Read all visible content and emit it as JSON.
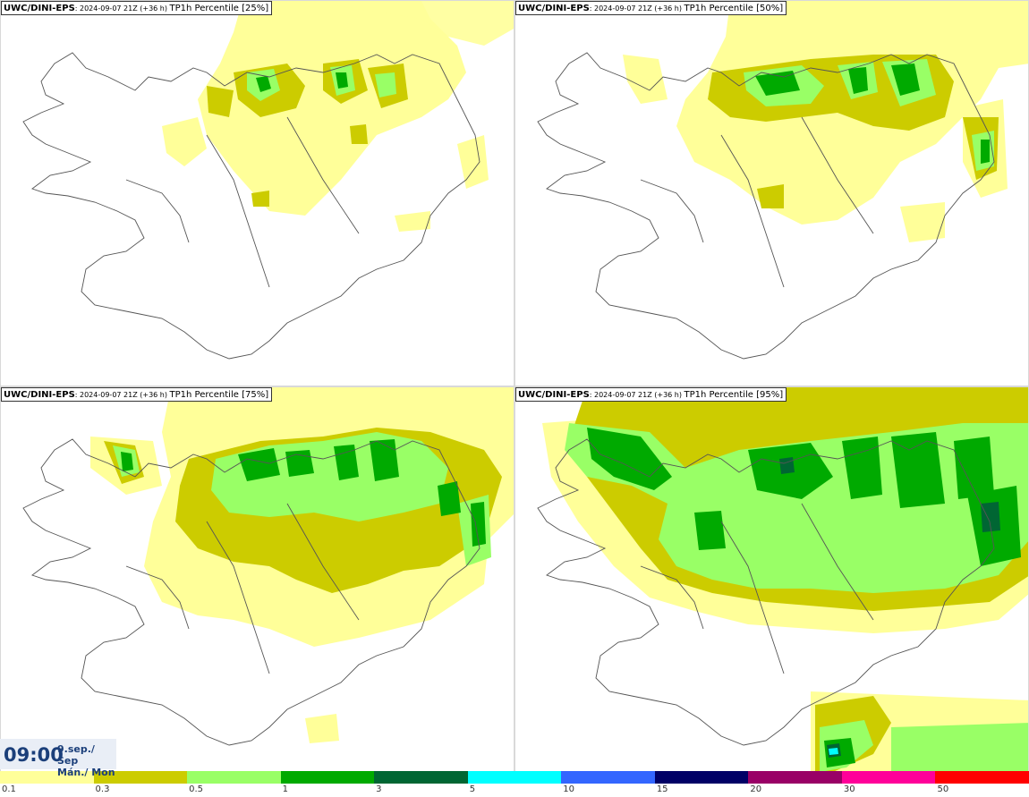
{
  "panels": [
    {
      "model": "UWC/DINI-EPS",
      "run_label": ": 2024-09-07 21Z (+36 h) ",
      "field_label": "TP1h Percentile [25%]",
      "percentile": 25
    },
    {
      "model": "UWC/DINI-EPS",
      "run_label": ": 2024-09-07 21Z (+36 h) ",
      "field_label": "TP1h Percentile [50%]",
      "percentile": 50
    },
    {
      "model": "UWC/DINI-EPS",
      "run_label": ": 2024-09-07 21Z (+36 h) ",
      "field_label": "TP1h Percentile [75%]",
      "percentile": 75
    },
    {
      "model": "UWC/DINI-EPS",
      "run_label": ": 2024-09-07 21Z (+36 h) ",
      "field_label": "TP1h Percentile [95%]",
      "percentile": 95
    }
  ],
  "valid_time": {
    "time": "09:00",
    "date_line1": "9.sep./ Sep",
    "date_line2": "Mán./ Mon"
  },
  "legend": {
    "ticks": [
      "0.1",
      "0.3",
      "0.5",
      "1",
      "3",
      "5",
      "10",
      "15",
      "20",
      "30",
      "50"
    ],
    "colors": [
      "#ffff99",
      "#cccc00",
      "#99ff66",
      "#00aa00",
      "#006633",
      "#00ffff",
      "#3366ff",
      "#000066",
      "#990066",
      "#ff0099",
      "#ff0000"
    ]
  }
}
